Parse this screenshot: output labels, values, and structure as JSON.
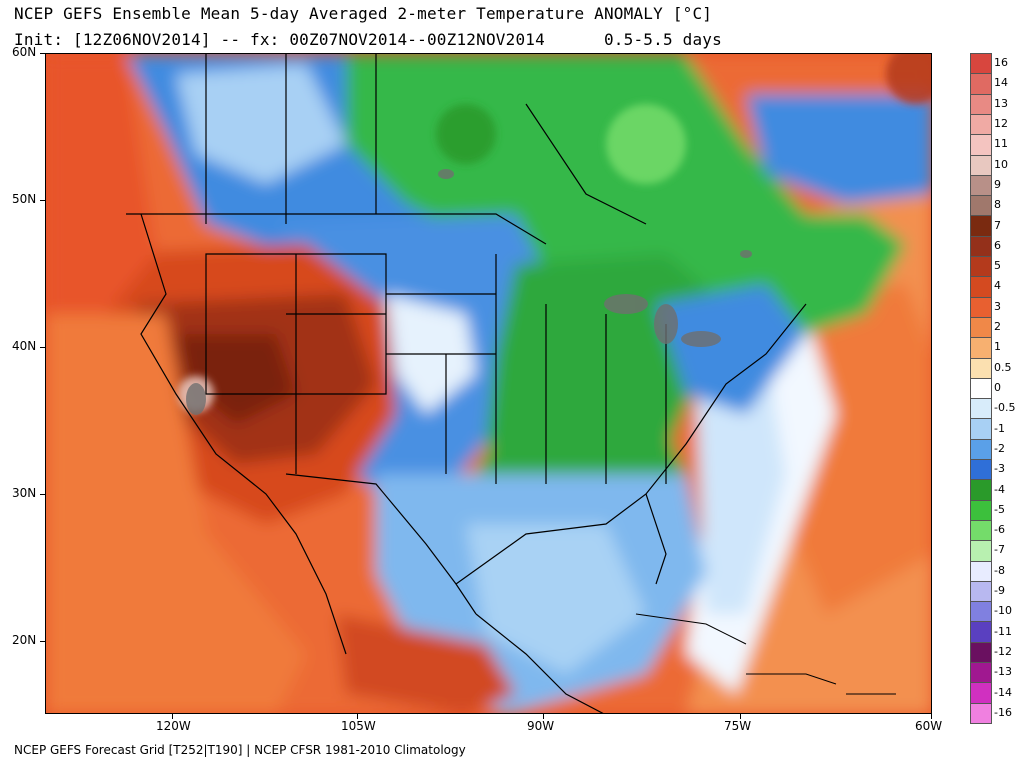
{
  "header": {
    "title": "NCEP GEFS Ensemble Mean 5-day Averaged 2-meter Temperature ANOMALY [°C]",
    "subtitle": "Init: [12Z06NOV2014] -- fx: 00Z07NOV2014--00Z12NOV2014      0.5-5.5 days"
  },
  "map": {
    "region": "North America",
    "lat_labels": [
      "60N",
      "50N",
      "40N",
      "30N",
      "20N"
    ],
    "lon_labels": [
      "120W",
      "105W",
      "90W",
      "75W",
      "60W"
    ],
    "regions": [
      {
        "name": "pacific-northwest-coast",
        "anomaly": 3,
        "color": "#e8552a"
      },
      {
        "name": "great-basin",
        "anomaly": 6,
        "color": "#8c2a12"
      },
      {
        "name": "western-canada",
        "anomaly": -2,
        "color": "#3f8be0"
      },
      {
        "name": "canadian-prairies",
        "anomaly": -4,
        "color": "#34b84a"
      },
      {
        "name": "great-lakes",
        "anomaly": -4,
        "color": "#34b84a"
      },
      {
        "name": "southeast-us",
        "anomaly": -4,
        "color": "#2fa83e"
      },
      {
        "name": "gulf-of-mexico",
        "anomaly": -1,
        "color": "#8fc2f0"
      },
      {
        "name": "east-coast-offshore",
        "anomaly": 0,
        "color": "#f2f8ff"
      },
      {
        "name": "north-atlantic",
        "anomaly": 2,
        "color": "#f07a3a"
      },
      {
        "name": "eastern-pacific",
        "anomaly": 2,
        "color": "#f07a3a"
      }
    ]
  },
  "colorbar": {
    "labels": [
      "16",
      "14",
      "13",
      "12",
      "11",
      "10",
      "9",
      "8",
      "7",
      "6",
      "5",
      "4",
      "3",
      "2",
      "1",
      "0.5",
      "0",
      "-0.5",
      "-1",
      "-2",
      "-3",
      "-4",
      "-5",
      "-6",
      "-7",
      "-8",
      "-9",
      "-10",
      "-11",
      "-12",
      "-13",
      "-14",
      "-16"
    ],
    "colors": [
      "#d8463e",
      "#e06a62",
      "#e88a84",
      "#f0aaa4",
      "#f4c4c0",
      "#e8c8c0",
      "#b89088",
      "#a0786c",
      "#7a2a10",
      "#94301a",
      "#b43a1c",
      "#d44a20",
      "#e86030",
      "#f08848",
      "#f7b070",
      "#fbe0b0",
      "#ffffff",
      "#d8ecfa",
      "#a8d0f4",
      "#5aa0e8",
      "#2f6fd8",
      "#2a9a2a",
      "#3cc03c",
      "#74dc6a",
      "#b8f0b0",
      "#e8ecff",
      "#b8b8f0",
      "#8080e0",
      "#5a40c0",
      "#6a1060",
      "#a01890",
      "#d030c0",
      "#f080e0"
    ]
  },
  "footer": {
    "text": "NCEP GEFS Forecast Grid [T252|T190] | NCEP CFSR 1981-2010 Climatology"
  }
}
